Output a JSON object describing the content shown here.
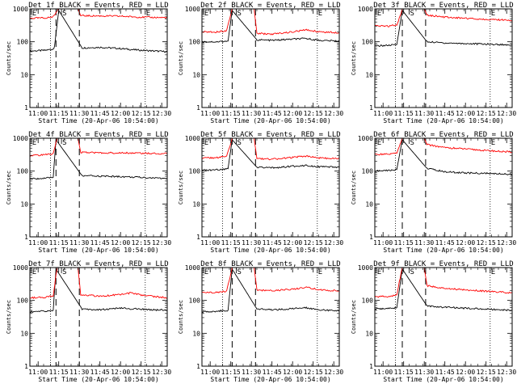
{
  "colors": {
    "events": "#000000",
    "lld": "#ff0000",
    "axes": "#000000",
    "background": "#ffffff"
  },
  "chart_data": [
    {
      "type": "line",
      "title": "Det 1f BLACK = Events, RED = LLD",
      "xlabel": "Start Time (20-Apr-06 10:54:00)",
      "ylabel": "Counts/sec",
      "x_ticks": [
        "11:00",
        "11:15",
        "11:30",
        "11:45",
        "12:00",
        "12:15",
        "12:30"
      ],
      "y_ticks": [
        "1",
        "10",
        "100",
        "1000"
      ],
      "y_scale": "log",
      "ylim": [
        1,
        1000
      ],
      "xlim": [
        "10:54",
        "12:34"
      ],
      "markers": [
        {
          "label": "E",
          "time": "10:55",
          "style": "solid"
        },
        {
          "label": "S",
          "time": "11:17",
          "style": "solid"
        },
        {
          "label": "E",
          "time": "12:18",
          "style": "solid"
        }
      ],
      "dotted_lines": [
        "11:09",
        "12:18"
      ],
      "dashed_lines": [
        "11:13",
        "11:30"
      ],
      "series": [
        {
          "name": "Events",
          "color": "#000000",
          "x": [
            "10:54",
            "11:05",
            "11:11",
            "11:12",
            "11:15",
            "11:32",
            "11:45",
            "12:00",
            "12:15",
            "12:34"
          ],
          "y": [
            52,
            55,
            60,
            75,
            900,
            65,
            68,
            62,
            55,
            50
          ]
        },
        {
          "name": "LLD",
          "color": "#ff0000",
          "x": [
            "10:54",
            "11:05",
            "11:10",
            "11:12",
            "11:14",
            "11:15",
            "11:29",
            "11:31",
            "11:45",
            "12:00",
            "12:15",
            "12:34"
          ],
          "y": [
            520,
            530,
            560,
            650,
            900,
            1000,
            1000,
            620,
            610,
            600,
            560,
            540
          ]
        }
      ]
    },
    {
      "type": "line",
      "title": "Det 2f BLACK = Events, RED = LLD",
      "xlabel": "Start Time (20-Apr-06 10:54:00)",
      "ylabel": "Counts/sec",
      "x_ticks": [
        "11:00",
        "11:15",
        "11:30",
        "11:45",
        "12:00",
        "12:15",
        "12:30"
      ],
      "y_ticks": [
        "1",
        "10",
        "100",
        "1000"
      ],
      "y_scale": "log",
      "ylim": [
        1,
        1000
      ],
      "xlim": [
        "10:54",
        "12:34"
      ],
      "markers": [
        {
          "label": "E",
          "time": "10:55",
          "style": "solid"
        },
        {
          "label": "S",
          "time": "11:19",
          "style": "solid"
        },
        {
          "label": "E",
          "time": "12:18",
          "style": "solid"
        }
      ],
      "dotted_lines": [
        "11:09",
        "12:18"
      ],
      "dashed_lines": [
        "11:16",
        "11:33"
      ],
      "series": [
        {
          "name": "Events",
          "color": "#000000",
          "x": [
            "10:54",
            "11:05",
            "11:13",
            "11:16",
            "11:34",
            "11:45",
            "12:00",
            "12:10",
            "12:20",
            "12:34"
          ],
          "y": [
            100,
            100,
            105,
            900,
            115,
            110,
            120,
            125,
            110,
            105
          ]
        },
        {
          "name": "LLD",
          "color": "#ff0000",
          "x": [
            "10:54",
            "11:05",
            "11:12",
            "11:15",
            "11:16",
            "11:32",
            "11:34",
            "11:45",
            "12:00",
            "12:10",
            "12:20",
            "12:34"
          ],
          "y": [
            200,
            200,
            220,
            700,
            1000,
            1000,
            180,
            170,
            200,
            230,
            200,
            190
          ]
        }
      ]
    },
    {
      "type": "line",
      "title": "Det 3f BLACK = Events, RED = LLD",
      "xlabel": "Start Time (20-Apr-06 10:54:00)",
      "ylabel": "Counts/sec",
      "x_ticks": [
        "11:00",
        "11:15",
        "11:30",
        "11:45",
        "12:00",
        "12:15",
        "12:30"
      ],
      "y_ticks": [
        "1",
        "10",
        "100",
        "1000"
      ],
      "y_scale": "log",
      "ylim": [
        1,
        1000
      ],
      "xlim": [
        "10:54",
        "12:34"
      ],
      "markers": [
        {
          "label": "E",
          "time": "10:55",
          "style": "solid"
        },
        {
          "label": "S",
          "time": "11:19",
          "style": "solid"
        },
        {
          "label": "E",
          "time": "12:18",
          "style": "solid"
        }
      ],
      "dotted_lines": [
        "11:09",
        "12:18"
      ],
      "dashed_lines": [
        "11:14",
        "11:31"
      ],
      "series": [
        {
          "name": "Events",
          "color": "#000000",
          "x": [
            "10:54",
            "11:05",
            "11:10",
            "11:14",
            "11:32",
            "11:45",
            "12:00",
            "12:15",
            "12:34"
          ],
          "y": [
            75,
            78,
            82,
            900,
            100,
            92,
            88,
            85,
            80
          ]
        },
        {
          "name": "LLD",
          "color": "#ff0000",
          "x": [
            "10:54",
            "11:05",
            "11:10",
            "11:13",
            "11:14",
            "11:30",
            "11:32",
            "11:45",
            "12:00",
            "12:15",
            "12:34"
          ],
          "y": [
            300,
            300,
            330,
            700,
            1000,
            1000,
            650,
            560,
            520,
            480,
            450
          ]
        }
      ]
    },
    {
      "type": "line",
      "title": "Det 4f BLACK = Events, RED = LLD",
      "xlabel": "Start Time (20-Apr-06 10:54:00)",
      "ylabel": "Counts/sec",
      "x_ticks": [
        "11:00",
        "11:15",
        "11:30",
        "11:45",
        "12:00",
        "12:15",
        "12:30"
      ],
      "y_ticks": [
        "1",
        "10",
        "100",
        "1000"
      ],
      "y_scale": "log",
      "ylim": [
        1,
        1000
      ],
      "xlim": [
        "10:54",
        "12:34"
      ],
      "markers": [
        {
          "label": "E",
          "time": "10:55",
          "style": "solid"
        },
        {
          "label": "S",
          "time": "11:17",
          "style": "solid"
        },
        {
          "label": "E",
          "time": "12:18",
          "style": "solid"
        }
      ],
      "dotted_lines": [
        "11:09",
        "12:18"
      ],
      "dashed_lines": [
        "11:13",
        "11:30"
      ],
      "series": [
        {
          "name": "Events",
          "color": "#000000",
          "x": [
            "10:54",
            "11:05",
            "11:11",
            "11:13",
            "11:32",
            "11:45",
            "12:00",
            "12:15",
            "12:34"
          ],
          "y": [
            58,
            60,
            65,
            900,
            72,
            70,
            68,
            64,
            60
          ]
        },
        {
          "name": "LLD",
          "color": "#ff0000",
          "x": [
            "10:54",
            "11:05",
            "11:11",
            "11:13",
            "11:14",
            "11:29",
            "11:31",
            "11:45",
            "12:00",
            "12:15",
            "12:34"
          ],
          "y": [
            300,
            310,
            340,
            750,
            1000,
            1000,
            370,
            360,
            360,
            350,
            340
          ]
        }
      ]
    },
    {
      "type": "line",
      "title": "Det 5f BLACK = Events, RED = LLD",
      "xlabel": "Start Time (20-Apr-06 10:54:00)",
      "ylabel": "Counts/sec",
      "x_ticks": [
        "11:00",
        "11:15",
        "11:30",
        "11:45",
        "12:00",
        "12:15",
        "12:30"
      ],
      "y_ticks": [
        "1",
        "10",
        "100",
        "1000"
      ],
      "y_scale": "log",
      "ylim": [
        1,
        1000
      ],
      "xlim": [
        "10:54",
        "12:34"
      ],
      "markers": [
        {
          "label": "E",
          "time": "10:55",
          "style": "solid"
        },
        {
          "label": "S",
          "time": "11:19",
          "style": "solid"
        },
        {
          "label": "E",
          "time": "12:18",
          "style": "solid"
        }
      ],
      "dotted_lines": [
        "11:09",
        "12:18"
      ],
      "dashed_lines": [
        "11:16",
        "11:33"
      ],
      "series": [
        {
          "name": "Events",
          "color": "#000000",
          "x": [
            "10:54",
            "11:05",
            "11:13",
            "11:16",
            "11:34",
            "11:45",
            "12:00",
            "12:10",
            "12:20",
            "12:34"
          ],
          "y": [
            105,
            110,
            118,
            900,
            130,
            125,
            140,
            150,
            135,
            130
          ]
        },
        {
          "name": "LLD",
          "color": "#ff0000",
          "x": [
            "10:54",
            "11:05",
            "11:12",
            "11:15",
            "11:16",
            "11:32",
            "11:34",
            "11:45",
            "12:00",
            "12:10",
            "12:20",
            "12:34"
          ],
          "y": [
            250,
            255,
            280,
            700,
            1000,
            1000,
            240,
            230,
            260,
            290,
            250,
            240
          ]
        }
      ]
    },
    {
      "type": "line",
      "title": "Det 6f BLACK = Events, RED = LLD",
      "xlabel": "Start Time (20-Apr-06 10:54:00)",
      "ylabel": "Counts/sec",
      "x_ticks": [
        "11:00",
        "11:15",
        "11:30",
        "11:45",
        "12:00",
        "12:15",
        "12:30"
      ],
      "y_ticks": [
        "1",
        "10",
        "100",
        "1000"
      ],
      "y_scale": "log",
      "ylim": [
        1,
        1000
      ],
      "xlim": [
        "10:54",
        "12:34"
      ],
      "markers": [
        {
          "label": "E",
          "time": "10:55",
          "style": "solid"
        },
        {
          "label": "S",
          "time": "11:19",
          "style": "solid"
        },
        {
          "label": "E",
          "time": "12:18",
          "style": "solid"
        }
      ],
      "dotted_lines": [
        "11:09",
        "12:18"
      ],
      "dashed_lines": [
        "11:14",
        "11:31"
      ],
      "series": [
        {
          "name": "Events",
          "color": "#000000",
          "x": [
            "10:54",
            "11:05",
            "11:10",
            "11:14",
            "11:32",
            "11:45",
            "12:00",
            "12:15",
            "12:34"
          ],
          "y": [
            100,
            105,
            112,
            900,
            120,
            95,
            88,
            85,
            80
          ]
        },
        {
          "name": "LLD",
          "color": "#ff0000",
          "x": [
            "10:54",
            "11:05",
            "11:10",
            "11:13",
            "11:14",
            "11:30",
            "11:32",
            "11:45",
            "12:00",
            "12:15",
            "12:34"
          ],
          "y": [
            320,
            330,
            360,
            750,
            1000,
            1000,
            640,
            520,
            470,
            420,
            380
          ]
        }
      ]
    },
    {
      "type": "line",
      "title": "Det 7f BLACK = Events, RED = LLD",
      "xlabel": "Start Time (20-Apr-06 10:54:00)",
      "ylabel": "Counts/sec",
      "x_ticks": [
        "11:00",
        "11:15",
        "11:30",
        "11:45",
        "12:00",
        "12:15",
        "12:30"
      ],
      "y_ticks": [
        "1",
        "10",
        "100",
        "1000"
      ],
      "y_scale": "log",
      "ylim": [
        1,
        1000
      ],
      "xlim": [
        "10:54",
        "12:34"
      ],
      "markers": [
        {
          "label": "E",
          "time": "10:55",
          "style": "solid"
        },
        {
          "label": "S",
          "time": "11:17",
          "style": "solid"
        },
        {
          "label": "E",
          "time": "12:18",
          "style": "solid"
        }
      ],
      "dotted_lines": [
        "11:09",
        "12:18"
      ],
      "dashed_lines": [
        "11:13",
        "11:30"
      ],
      "series": [
        {
          "name": "Events",
          "color": "#000000",
          "x": [
            "10:54",
            "11:05",
            "11:11",
            "11:13",
            "11:32",
            "11:45",
            "12:00",
            "12:15",
            "12:34"
          ],
          "y": [
            45,
            47,
            50,
            900,
            55,
            52,
            58,
            54,
            50
          ]
        },
        {
          "name": "LLD",
          "color": "#ff0000",
          "x": [
            "10:54",
            "11:05",
            "11:11",
            "11:13",
            "11:14",
            "11:29",
            "11:31",
            "11:45",
            "12:00",
            "12:08",
            "12:15",
            "12:34"
          ],
          "y": [
            120,
            125,
            140,
            600,
            1000,
            1000,
            150,
            135,
            150,
            170,
            145,
            120
          ]
        }
      ]
    },
    {
      "type": "line",
      "title": "Det 8f BLACK = Events, RED = LLD",
      "xlabel": "Start Time (20-Apr-06 10:54:00)",
      "ylabel": "Counts/sec",
      "x_ticks": [
        "11:00",
        "11:15",
        "11:30",
        "11:45",
        "12:00",
        "12:15",
        "12:30"
      ],
      "y_ticks": [
        "1",
        "10",
        "100",
        "1000"
      ],
      "y_scale": "log",
      "ylim": [
        1,
        1000
      ],
      "xlim": [
        "10:54",
        "12:34"
      ],
      "markers": [
        {
          "label": "E",
          "time": "10:55",
          "style": "solid"
        },
        {
          "label": "S",
          "time": "11:19",
          "style": "solid"
        },
        {
          "label": "E",
          "time": "12:18",
          "style": "solid"
        }
      ],
      "dotted_lines": [
        "11:09",
        "12:18"
      ],
      "dashed_lines": [
        "11:16",
        "11:33"
      ],
      "series": [
        {
          "name": "Events",
          "color": "#000000",
          "x": [
            "10:54",
            "11:05",
            "11:13",
            "11:16",
            "11:34",
            "11:45",
            "12:00",
            "12:10",
            "12:20",
            "12:34"
          ],
          "y": [
            45,
            47,
            50,
            900,
            55,
            52,
            56,
            60,
            52,
            48
          ]
        },
        {
          "name": "LLD",
          "color": "#ff0000",
          "x": [
            "10:54",
            "11:05",
            "11:12",
            "11:15",
            "11:16",
            "11:32",
            "11:34",
            "11:45",
            "12:00",
            "12:10",
            "12:20",
            "12:34"
          ],
          "y": [
            170,
            175,
            190,
            650,
            1000,
            1000,
            210,
            195,
            220,
            250,
            210,
            195
          ]
        }
      ]
    },
    {
      "type": "line",
      "title": "Det 9f BLACK = Events, RED = LLD",
      "xlabel": "Start Time (20-Apr-06 10:54:00)",
      "ylabel": "Counts/sec",
      "x_ticks": [
        "11:00",
        "11:15",
        "11:30",
        "11:45",
        "12:00",
        "12:15",
        "12:30"
      ],
      "y_ticks": [
        "1",
        "10",
        "100",
        "1000"
      ],
      "y_scale": "log",
      "ylim": [
        1,
        1000
      ],
      "xlim": [
        "10:54",
        "12:34"
      ],
      "markers": [
        {
          "label": "E",
          "time": "10:55",
          "style": "solid"
        },
        {
          "label": "S",
          "time": "11:19",
          "style": "solid"
        },
        {
          "label": "E",
          "time": "12:18",
          "style": "solid"
        }
      ],
      "dotted_lines": [
        "11:09",
        "12:18"
      ],
      "dashed_lines": [
        "11:14",
        "11:31"
      ],
      "series": [
        {
          "name": "Events",
          "color": "#000000",
          "x": [
            "10:54",
            "11:05",
            "11:10",
            "11:14",
            "11:32",
            "11:45",
            "12:00",
            "12:15",
            "12:34"
          ],
          "y": [
            55,
            57,
            60,
            900,
            68,
            62,
            58,
            55,
            50
          ]
        },
        {
          "name": "LLD",
          "color": "#ff0000",
          "x": [
            "10:54",
            "11:05",
            "11:10",
            "11:13",
            "11:14",
            "11:30",
            "11:32",
            "11:45",
            "12:00",
            "12:15",
            "12:34"
          ],
          "y": [
            130,
            135,
            150,
            650,
            1000,
            1000,
            280,
            230,
            210,
            190,
            170
          ]
        }
      ]
    }
  ]
}
